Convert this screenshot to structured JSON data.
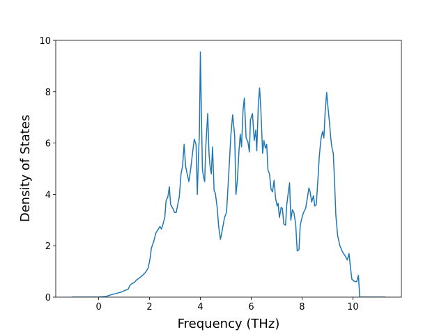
{
  "chart_data": {
    "type": "line",
    "xlabel": "Frequency (THz)",
    "ylabel": "Density of States",
    "color": "#1f77b4",
    "x": [
      -1.05,
      0,
      0.27,
      0.45,
      0.72,
      0.9,
      1.08,
      1.17,
      1.22,
      1.3,
      1.4,
      1.49,
      1.62,
      1.76,
      1.85,
      1.94,
      1.98,
      2.03,
      2.07,
      2.16,
      2.25,
      2.41,
      2.47,
      2.53,
      2.6,
      2.65,
      2.72,
      2.78,
      2.83,
      2.92,
      2.98,
      3.05,
      3.1,
      3.17,
      3.24,
      3.3,
      3.36,
      3.42,
      3.48,
      3.55,
      3.62,
      3.69,
      3.76,
      3.83,
      3.88,
      3.93,
      3.96,
      3.98,
      4.0,
      4.04,
      4.08,
      4.12,
      4.17,
      4.21,
      4.29,
      4.34,
      4.38,
      4.43,
      4.48,
      4.54,
      4.59,
      4.66,
      4.72,
      4.79,
      4.86,
      4.95,
      5.03,
      5.1,
      5.2,
      5.27,
      5.35,
      5.4,
      5.46,
      5.52,
      5.57,
      5.62,
      5.68,
      5.73,
      5.8,
      5.87,
      5.93,
      5.97,
      6.05,
      6.12,
      6.18,
      6.22,
      6.28,
      6.33,
      6.38,
      6.45,
      6.5,
      6.56,
      6.61,
      6.66,
      6.72,
      6.78,
      6.84,
      6.9,
      6.96,
      7.02,
      7.06,
      7.11,
      7.18,
      7.23,
      7.28,
      7.35,
      7.4,
      7.45,
      7.51,
      7.56,
      7.62,
      7.68,
      7.75,
      7.81,
      7.88,
      7.93,
      8.0,
      8.06,
      8.14,
      8.2,
      8.27,
      8.32,
      8.38,
      8.45,
      8.5,
      8.56,
      8.63,
      8.68,
      8.75,
      8.81,
      8.86,
      8.91,
      8.97,
      9.02,
      9.08,
      9.13,
      9.18,
      9.23,
      9.28,
      9.33,
      9.4,
      9.49,
      9.6,
      9.7,
      9.78,
      9.85,
      9.9,
      9.96,
      10.05,
      10.15,
      10.22,
      10.27,
      11.27
    ],
    "values": [
      0,
      0,
      0.02,
      0.08,
      0.15,
      0.2,
      0.28,
      0.32,
      0.45,
      0.52,
      0.57,
      0.67,
      0.76,
      0.88,
      0.98,
      1.12,
      1.3,
      1.55,
      1.9,
      2.15,
      2.5,
      2.75,
      2.65,
      2.85,
      3.1,
      3.75,
      3.9,
      4.3,
      3.6,
      3.45,
      3.3,
      3.3,
      3.55,
      3.9,
      4.8,
      5.1,
      5.95,
      5.1,
      4.8,
      4.5,
      5.0,
      5.6,
      6.15,
      5.95,
      4.0,
      5.6,
      6.3,
      7.8,
      9.55,
      7.2,
      5.0,
      4.7,
      4.5,
      5.8,
      7.15,
      5.6,
      5.1,
      4.8,
      5.85,
      4.15,
      4.05,
      3.5,
      2.75,
      2.25,
      2.6,
      3.1,
      3.3,
      4.5,
      6.3,
      7.1,
      6.3,
      4.0,
      4.6,
      5.7,
      6.35,
      5.85,
      7.3,
      7.75,
      6.2,
      6.05,
      5.65,
      6.9,
      7.15,
      6.1,
      6.5,
      5.7,
      7.5,
      8.15,
      7.3,
      5.6,
      6.1,
      5.8,
      5.95,
      4.95,
      4.8,
      4.2,
      4.1,
      4.55,
      3.85,
      3.55,
      3.65,
      3.1,
      3.5,
      3.45,
      2.85,
      2.8,
      3.6,
      4.0,
      4.45,
      3.0,
      3.4,
      3.3,
      2.85,
      1.8,
      1.85,
      2.8,
      3.1,
      3.3,
      3.45,
      3.8,
      4.25,
      4.1,
      3.7,
      3.95,
      3.55,
      3.6,
      4.65,
      5.5,
      6.2,
      6.45,
      6.2,
      7.2,
      7.97,
      7.4,
      6.8,
      6.2,
      5.8,
      5.6,
      4.5,
      3.2,
      2.4,
      2.0,
      1.75,
      1.6,
      1.45,
      1.7,
      1.2,
      0.7,
      0.62,
      0.6,
      0.85,
      0,
      0
    ],
    "xlim": [
      -1.69,
      11.91
    ],
    "ylim": [
      0,
      10
    ],
    "xticks": [
      0,
      2,
      4,
      6,
      8,
      10
    ],
    "yticks": [
      0,
      2,
      4,
      6,
      8,
      10
    ]
  }
}
